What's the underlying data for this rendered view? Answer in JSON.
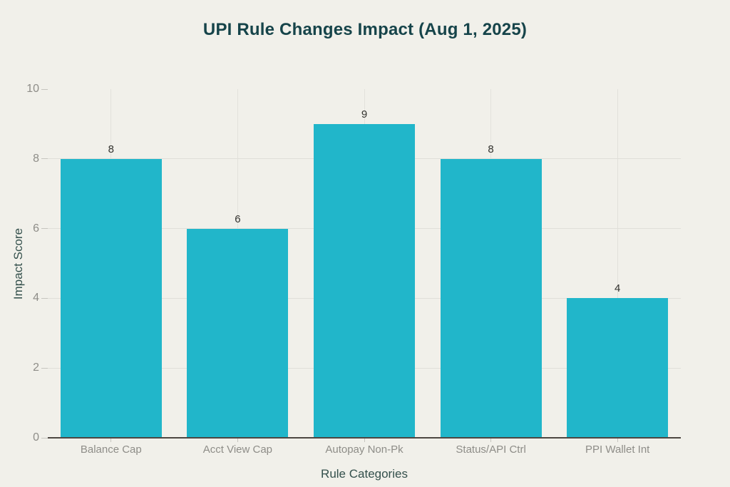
{
  "chart_data": {
    "type": "bar",
    "title": "UPI Rule Changes Impact (Aug 1, 2025)",
    "xlabel": "Rule Categories",
    "ylabel": "Impact Score",
    "categories": [
      "Balance Cap",
      "Acct View Cap",
      "Autopay Non-Pk",
      "Status/API Ctrl",
      "PPI Wallet Int"
    ],
    "values": [
      8,
      6,
      9,
      8,
      4
    ],
    "value_labels": [
      "8",
      "6",
      "9",
      "8",
      "4"
    ],
    "ylim": [
      0,
      10
    ],
    "yticks": [
      0,
      2,
      4,
      6,
      8,
      10
    ],
    "grid": true,
    "gridlines_horizontal_at": [
      2,
      4,
      6,
      8
    ],
    "legend": "none"
  },
  "colors": {
    "background": "#f1f0ea",
    "bar": "#21b6ca",
    "title_text": "#16444a",
    "axis_label_text": "#34504c",
    "tick_label_text": "#8e8d88",
    "value_label_text": "#33332f",
    "axis_line": "#4d4742",
    "gridline_h": "#e0dfd9",
    "gridline_v": "#e2e1db",
    "tick_mark": "#c6c5bf"
  }
}
